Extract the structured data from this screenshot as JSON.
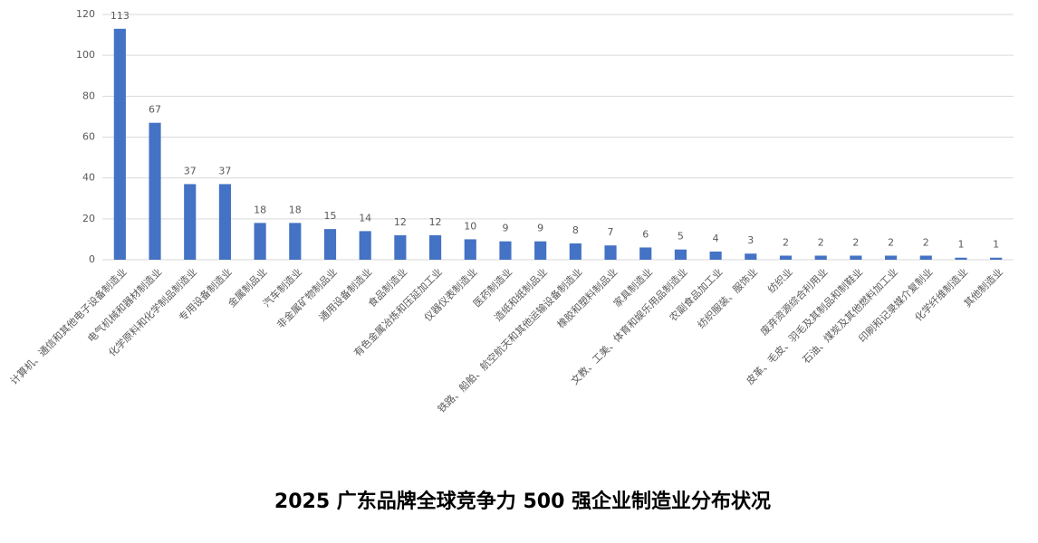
{
  "chart_data": {
    "type": "bar",
    "title": "2025 广东品牌全球竞争力 500 强企业制造业分布状况",
    "categories": [
      "计算机、通信和其他电子设备制造业",
      "电气机械和器材制造业",
      "化学原料和化学制品制造业",
      "专用设备制造业",
      "金属制品业",
      "汽车制造业",
      "非金属矿物制品业",
      "通用设备制造业",
      "食品制造业",
      "有色金属冶炼和压延加工业",
      "仪器仪表制造业",
      "医药制造业",
      "造纸和纸制品业",
      "铁路、船舶、航空航天和其他运输设备制造业",
      "橡胶和塑料制品业",
      "家具制造业",
      "文教、工美、体育和娱乐用品制造业",
      "农副食品加工业",
      "纺织服装、服饰业",
      "纺织业",
      "废弃资源综合利用业",
      "皮革、毛皮、羽毛及其制品和制鞋业",
      "石油、煤炭及其他燃料加工业",
      "印刷和记录媒介复制业",
      "化学纤维制造业",
      "其他制造业"
    ],
    "values": [
      113,
      67,
      37,
      37,
      18,
      18,
      15,
      14,
      12,
      12,
      10,
      9,
      9,
      8,
      7,
      6,
      5,
      4,
      3,
      2,
      2,
      2,
      2,
      2,
      1,
      1
    ],
    "color": "#4472c4",
    "ylim": [
      0,
      120
    ],
    "yticks": [
      0,
      20,
      40,
      60,
      80,
      100,
      120
    ],
    "grid": true
  }
}
